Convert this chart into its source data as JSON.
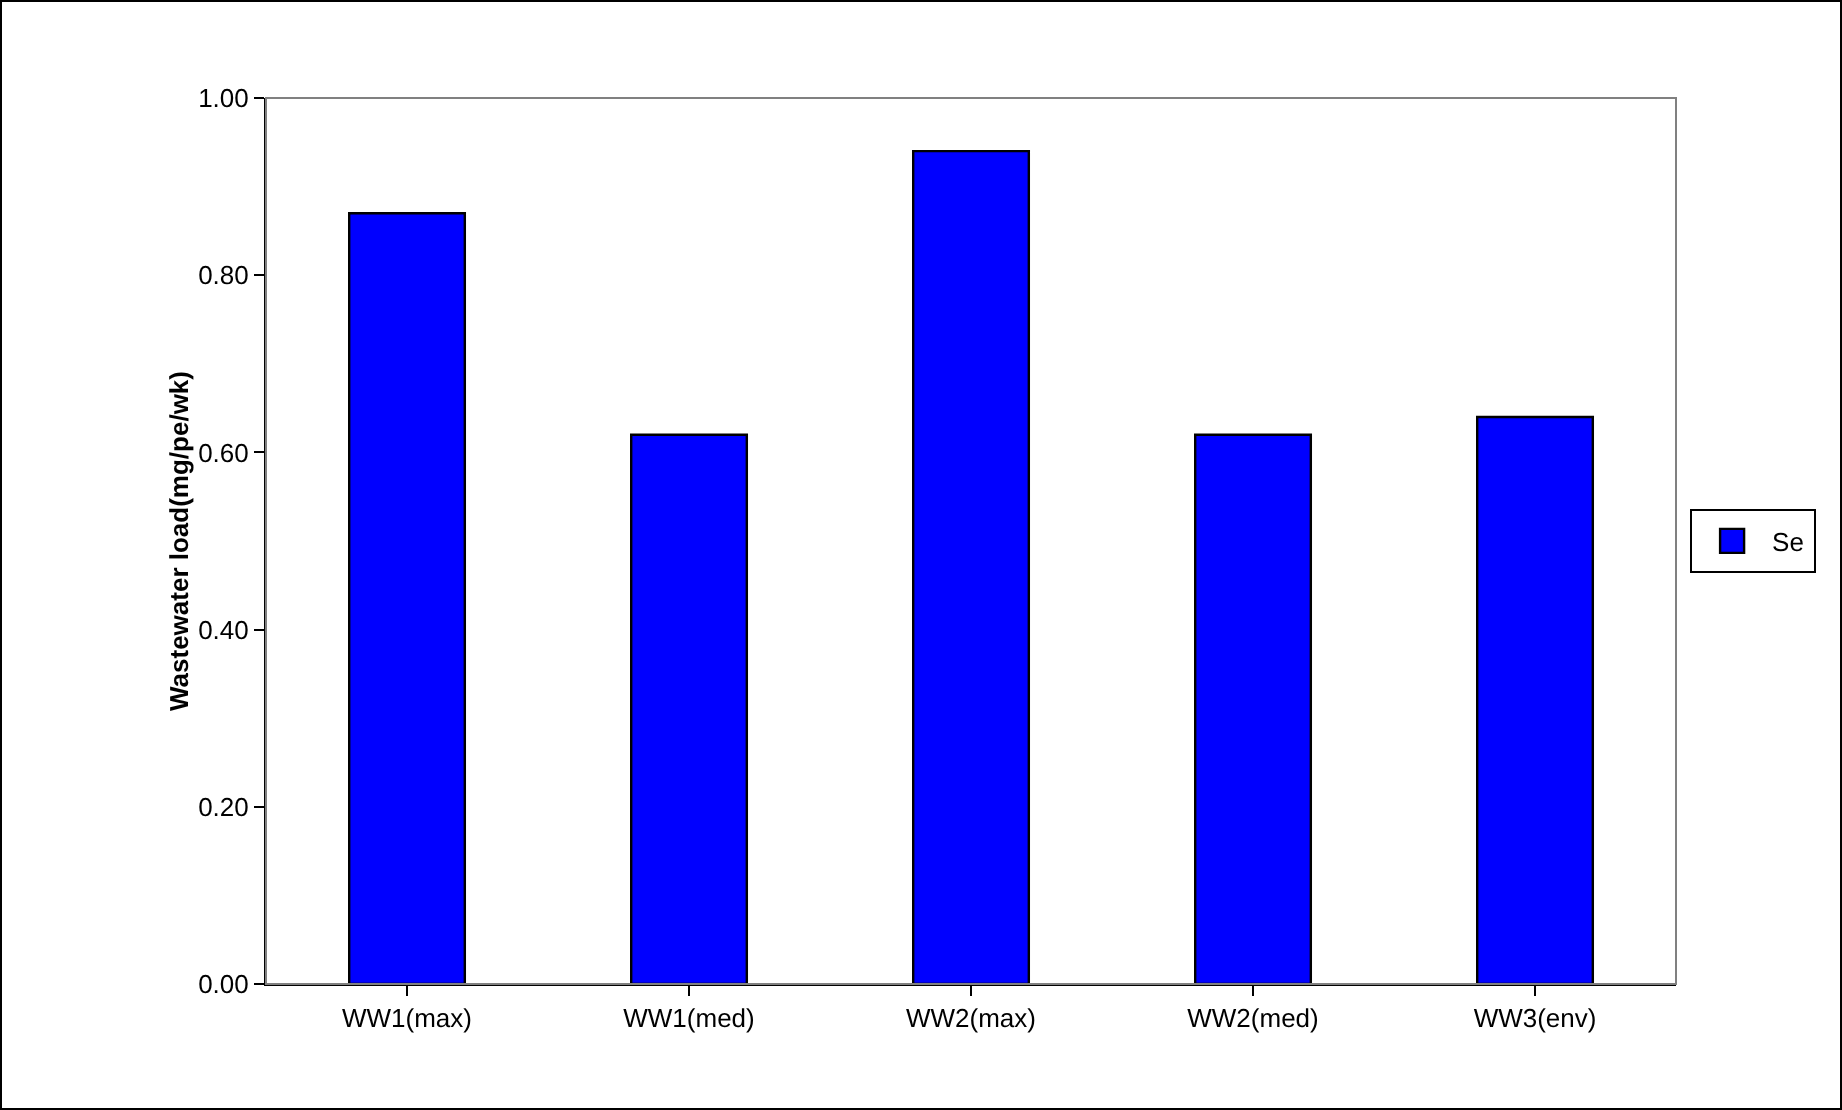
{
  "chart_data": {
    "type": "bar",
    "ylabel": "Wastewater load(mg/pe/wk)",
    "categories": [
      "WW1(max)",
      "WW1(med)",
      "WW2(max)",
      "WW2(med)",
      "WW3(env)"
    ],
    "series": [
      {
        "name": "Se",
        "color": "#0000ff",
        "values": [
          0.87,
          0.62,
          0.94,
          0.62,
          0.64
        ]
      }
    ],
    "ylim": [
      0,
      1
    ],
    "yticks": [
      {
        "value": 0,
        "label": "0.00"
      },
      {
        "value": 0.2,
        "label": "0.20"
      },
      {
        "value": 0.4,
        "label": "0.40"
      },
      {
        "value": 0.6,
        "label": "0.60"
      },
      {
        "value": 0.8,
        "label": "0.80"
      },
      {
        "value": 1,
        "label": "1.00"
      }
    ],
    "grid": false,
    "legend": "right"
  }
}
